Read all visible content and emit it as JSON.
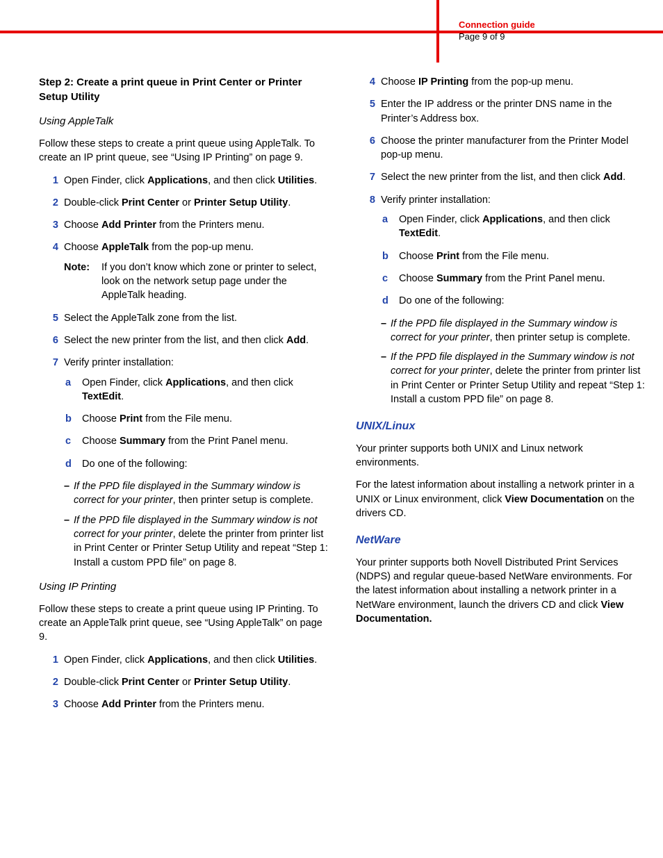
{
  "header": {
    "title": "Connection guide",
    "page": "Page 9 of 9",
    "accent_color": "#e60000"
  },
  "left": {
    "step_title": "Step 2: Create a print queue in Print Center or Printer Setup Utility",
    "appletalk": {
      "heading": "Using AppleTalk",
      "intro": "Follow these steps to create a print queue using AppleTalk. To create an IP print queue, see “Using IP Printing” on page 9.",
      "s1a": "Open Finder, click ",
      "s1b": "Applications",
      "s1c": ", and then click ",
      "s1d": "Utilities",
      "s1e": ".",
      "s2a": "Double-click ",
      "s2b": "Print Center",
      "s2c": " or ",
      "s2d": "Printer Setup Utility",
      "s2e": ".",
      "s3a": "Choose ",
      "s3b": "Add Printer",
      "s3c": " from the Printers menu.",
      "s4a": "Choose ",
      "s4b": "AppleTalk",
      "s4c": " from the pop-up menu.",
      "note_label": "Note:",
      "note": "If you don’t know which zone or printer to select, look on the network setup page under the AppleTalk heading.",
      "s5": "Select the AppleTalk zone from the list.",
      "s6a": "Select the new printer from the list, and then click ",
      "s6b": "Add",
      "s6c": ".",
      "s7": "Verify printer installation:",
      "a_a": "Open Finder, click ",
      "a_b": "Applications",
      "a_c": ", and then click ",
      "a_d": "TextEdit",
      "a_e": ".",
      "b_a": "Choose ",
      "b_b": "Print",
      "b_c": " from the File menu.",
      "c_a": "Choose ",
      "c_b": "Summary",
      "c_c": " from the Print Panel menu.",
      "d": "Do one of the following:",
      "dash1_lead": "If the PPD file displayed in the Summary window is correct for your printer",
      "dash1_rest": ", then printer setup is complete.",
      "dash2_lead": "If the PPD file displayed in the Summary window is not correct for your printer",
      "dash2_rest": ", delete the printer from printer list in Print Center or Printer Setup Utility and repeat “Step 1: Install a custom PPD file” on page 8."
    },
    "ip": {
      "heading": "Using IP Printing",
      "intro": "Follow these steps to create a print queue using IP Printing. To create an AppleTalk print queue, see “Using AppleTalk” on page 9.",
      "s1a": "Open Finder, click ",
      "s1b": "Applications",
      "s1c": ", and then click ",
      "s1d": "Utilities",
      "s1e": ".",
      "s2a": "Double-click ",
      "s2b": "Print Center",
      "s2c": " or ",
      "s2d": "Printer Setup Utility",
      "s2e": ".",
      "s3a": "Choose ",
      "s3b": "Add Printer",
      "s3c": " from the Printers menu."
    }
  },
  "right": {
    "ip_cont": {
      "s4a": "Choose ",
      "s4b": "IP Printing",
      "s4c": " from the pop-up menu.",
      "s5": "Enter the IP address or the printer DNS name in the Printer’s Address box.",
      "s6": "Choose the printer manufacturer from the Printer Model pop-up menu.",
      "s7a": "Select the new printer from the list, and then click ",
      "s7b": "Add",
      "s7c": ".",
      "s8": "Verify printer installation:",
      "a_a": "Open Finder, click ",
      "a_b": "Applications",
      "a_c": ", and then click ",
      "a_d": "TextEdit",
      "a_e": ".",
      "b_a": "Choose ",
      "b_b": "Print",
      "b_c": " from the File menu.",
      "c_a": "Choose ",
      "c_b": "Summary",
      "c_c": " from the Print Panel menu.",
      "d": "Do one of the following:",
      "dash1_lead": "If the PPD file displayed in the Summary window is correct for your printer",
      "dash1_rest": ", then printer setup is complete.",
      "dash2_lead": "If the PPD file displayed in the Summary window is not correct for your printer",
      "dash2_rest": ", delete the printer from printer list in Print Center or Printer Setup Utility and repeat “Step 1: Install a custom PPD file” on page 8."
    },
    "unix": {
      "heading": "UNIX/Linux",
      "p1": "Your printer supports both UNIX and Linux network environments.",
      "p2a": "For the latest information about installing a network printer in a UNIX or Linux environment, click ",
      "p2b": "View Documentation",
      "p2c": " on the drivers CD."
    },
    "netware": {
      "heading": "NetWare",
      "p1a": "Your printer supports both Novell Distributed Print Services (NDPS) and regular queue-based NetWare environments. For the latest information about installing a network printer in a NetWare environment, launch the drivers CD and click ",
      "p1b": "View Documentation."
    }
  }
}
